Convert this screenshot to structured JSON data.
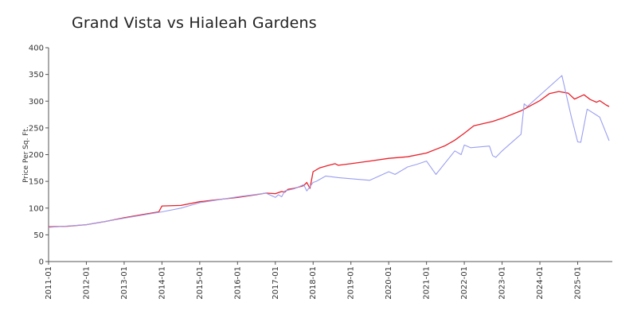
{
  "chart_data": {
    "type": "line",
    "title": "Grand Vista vs Hialeah Gardens",
    "xlabel": "",
    "ylabel": "Price Per Sq. Ft.",
    "ylim": [
      0,
      400
    ],
    "xlim": [
      "2011-01",
      "2025-12"
    ],
    "yticks": [
      "0",
      "50",
      "100",
      "150",
      "200",
      "250",
      "300",
      "350",
      "400"
    ],
    "xticks": [
      "2011-01",
      "2012-01",
      "2013-01",
      "2014-01",
      "2015-01",
      "2016-01",
      "2017-01",
      "2018-01",
      "2019-01",
      "2020-01",
      "2021-01",
      "2022-01",
      "2023-01",
      "2024-01",
      "2025-01"
    ],
    "grid": false,
    "legend": "none",
    "series": [
      {
        "color": "#e8202a",
        "points": [
          [
            "2011-01",
            65
          ],
          [
            "2011-07",
            66
          ],
          [
            "2012-01",
            69
          ],
          [
            "2012-07",
            75
          ],
          [
            "2013-01",
            82
          ],
          [
            "2013-07",
            88
          ],
          [
            "2013-12",
            93
          ],
          [
            "2014-01",
            104
          ],
          [
            "2014-07",
            105
          ],
          [
            "2015-01",
            112
          ],
          [
            "2015-07",
            116
          ],
          [
            "2016-01",
            120
          ],
          [
            "2016-07",
            125
          ],
          [
            "2016-10",
            128
          ],
          [
            "2017-01",
            127
          ],
          [
            "2017-03",
            131
          ],
          [
            "2017-04",
            130
          ],
          [
            "2017-05",
            135
          ],
          [
            "2017-07",
            137
          ],
          [
            "2017-10",
            142
          ],
          [
            "2017-11",
            148
          ],
          [
            "2017-12",
            137
          ],
          [
            "2018-01",
            168
          ],
          [
            "2018-03",
            175
          ],
          [
            "2018-06",
            180
          ],
          [
            "2018-08",
            183
          ],
          [
            "2018-09",
            180
          ],
          [
            "2019-01",
            183
          ],
          [
            "2019-07",
            188
          ],
          [
            "2020-01",
            193
          ],
          [
            "2020-07",
            196
          ],
          [
            "2021-01",
            203
          ],
          [
            "2021-04",
            210
          ],
          [
            "2021-07",
            217
          ],
          [
            "2021-10",
            227
          ],
          [
            "2022-01",
            240
          ],
          [
            "2022-04",
            254
          ],
          [
            "2022-07",
            258
          ],
          [
            "2022-10",
            262
          ],
          [
            "2023-01",
            268
          ],
          [
            "2023-07",
            282
          ],
          [
            "2024-01",
            301
          ],
          [
            "2024-04",
            314
          ],
          [
            "2024-07",
            318
          ],
          [
            "2024-10",
            315
          ],
          [
            "2024-12",
            304
          ],
          [
            "2025-03",
            312
          ],
          [
            "2025-05",
            303
          ],
          [
            "2025-07",
            298
          ],
          [
            "2025-08",
            301
          ],
          [
            "2025-10",
            293
          ],
          [
            "2025-11",
            290
          ]
        ]
      },
      {
        "color": "#9a9ff0",
        "points": [
          [
            "2011-01",
            64
          ],
          [
            "2012-01",
            69
          ],
          [
            "2013-01",
            81
          ],
          [
            "2014-01",
            93
          ],
          [
            "2014-07",
            100
          ],
          [
            "2015-01",
            110
          ],
          [
            "2016-01",
            121
          ],
          [
            "2016-10",
            128
          ],
          [
            "2017-01",
            120
          ],
          [
            "2017-02",
            125
          ],
          [
            "2017-03",
            121
          ],
          [
            "2017-04",
            132
          ],
          [
            "2017-07",
            136
          ],
          [
            "2017-10",
            144
          ],
          [
            "2017-11",
            132
          ],
          [
            "2018-01",
            148
          ],
          [
            "2018-02",
            150
          ],
          [
            "2018-05",
            160
          ],
          [
            "2018-09",
            157
          ],
          [
            "2019-01",
            155
          ],
          [
            "2019-07",
            152
          ],
          [
            "2020-01",
            168
          ],
          [
            "2020-03",
            163
          ],
          [
            "2020-07",
            177
          ],
          [
            "2020-10",
            182
          ],
          [
            "2021-01",
            188
          ],
          [
            "2021-04",
            163
          ],
          [
            "2021-10",
            207
          ],
          [
            "2021-12",
            200
          ],
          [
            "2022-01",
            218
          ],
          [
            "2022-03",
            213
          ],
          [
            "2022-09",
            216
          ],
          [
            "2022-10",
            198
          ],
          [
            "2022-11",
            195
          ],
          [
            "2023-01",
            207
          ],
          [
            "2023-07",
            238
          ],
          [
            "2023-08",
            295
          ],
          [
            "2023-09",
            290
          ],
          [
            "2024-08",
            348
          ],
          [
            "2024-11",
            270
          ],
          [
            "2025-01",
            224
          ],
          [
            "2025-02",
            223
          ],
          [
            "2025-04",
            285
          ],
          [
            "2025-08",
            270
          ],
          [
            "2025-11",
            226
          ]
        ]
      }
    ]
  }
}
